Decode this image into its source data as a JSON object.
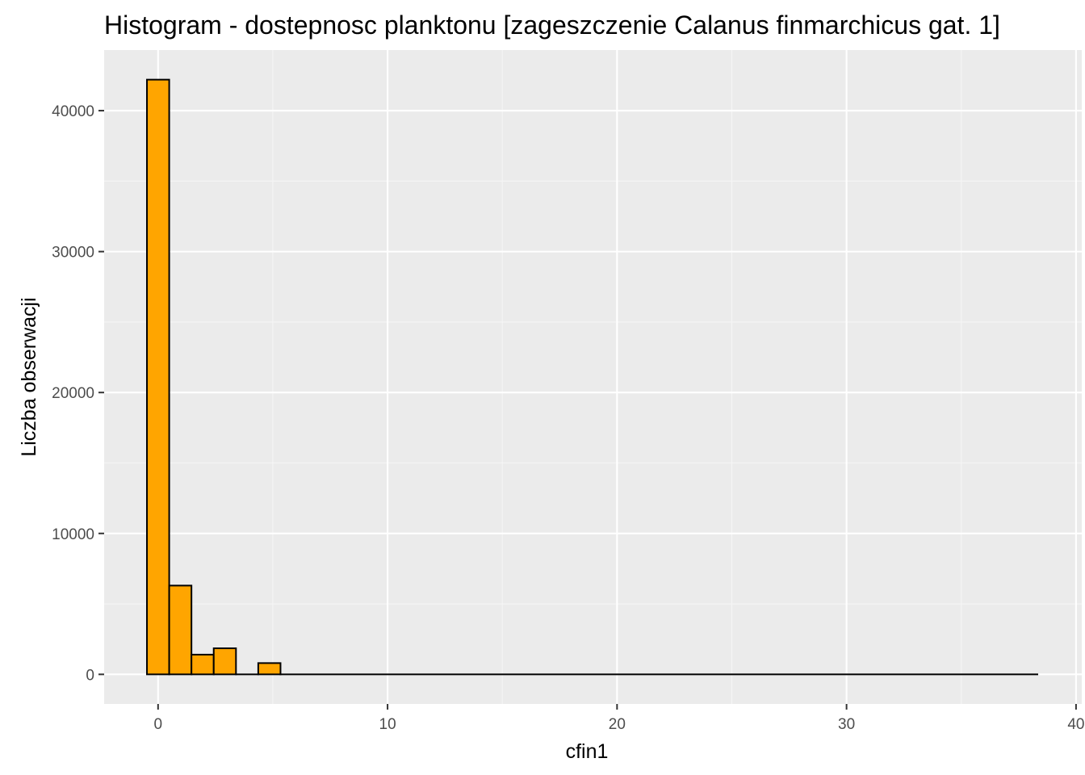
{
  "chart_data": {
    "type": "bar",
    "title": "Histogram - dostepnosc planktonu [zageszczenie Calanus finmarchicus gat. 1]",
    "xlabel": "cfin1",
    "ylabel": "Liczba obserwacji",
    "xlim": [
      -2.35,
      40.25
    ],
    "ylim": [
      -2100,
      44300
    ],
    "x_ticks": [
      0,
      10,
      20,
      30,
      40
    ],
    "x_tick_labels": [
      "0",
      "10",
      "20",
      "30",
      "40"
    ],
    "y_ticks": [
      0,
      10000,
      20000,
      30000,
      40000
    ],
    "y_tick_labels": [
      "0",
      "10000",
      "20000",
      "30000",
      "40000"
    ],
    "grid": true,
    "legend": "none",
    "bin_width": 0.97,
    "bins": [
      {
        "x0": -0.485,
        "x1": 0.485,
        "count": 42200
      },
      {
        "x0": 0.485,
        "x1": 1.455,
        "count": 6300
      },
      {
        "x0": 1.455,
        "x1": 2.425,
        "count": 1400
      },
      {
        "x0": 2.425,
        "x1": 3.395,
        "count": 1850
      },
      {
        "x0": 3.395,
        "x1": 4.365,
        "count": 0
      },
      {
        "x0": 4.365,
        "x1": 5.335,
        "count": 800
      },
      {
        "x0": 5.335,
        "x1": 38.315,
        "count": 0
      }
    ],
    "colors": {
      "panel_background": "#ebebeb",
      "grid_major": "#ffffff",
      "grid_minor": "#f5f5f5",
      "bar_fill": "#ffa500",
      "bar_stroke": "#000000",
      "tick_text": "#4d4d4d"
    }
  }
}
